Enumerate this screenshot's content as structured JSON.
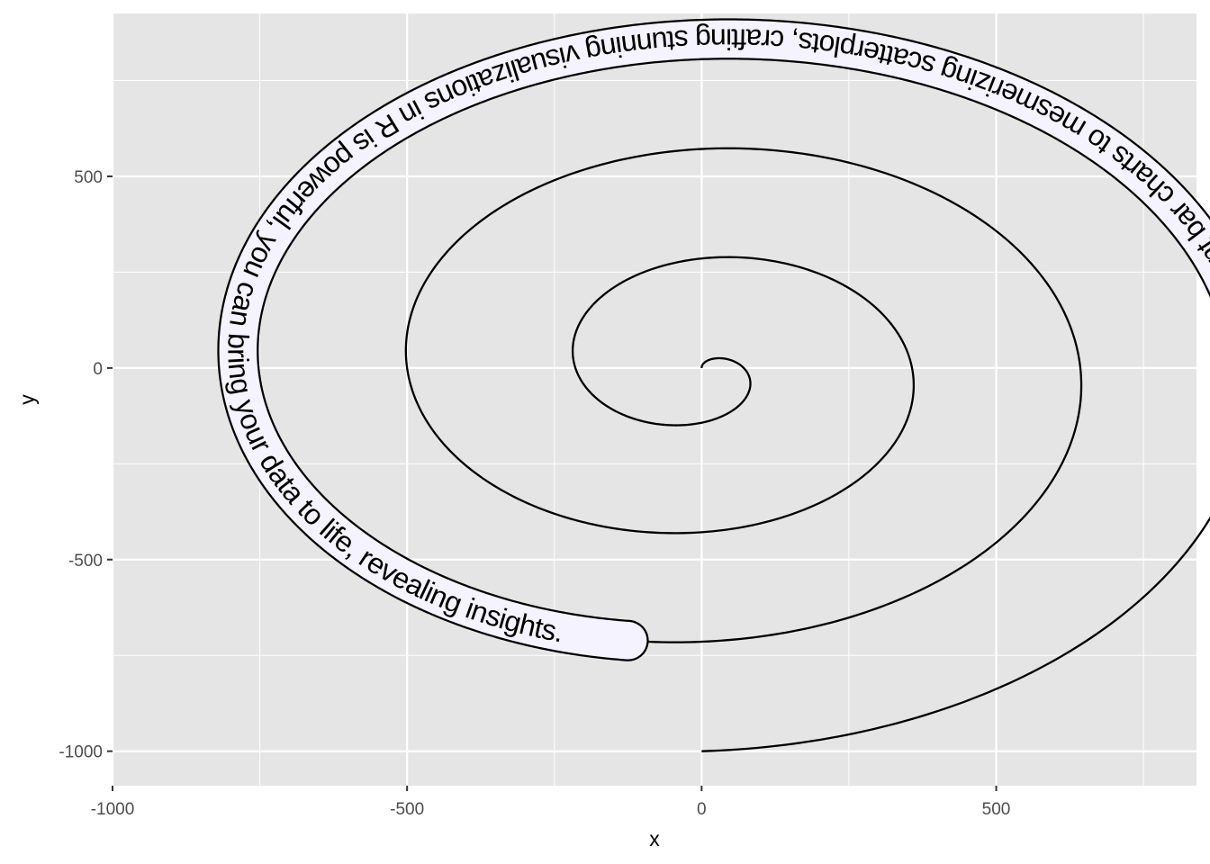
{
  "chart_data": {
    "type": "line",
    "title": "",
    "xlabel": "x",
    "ylabel": "y",
    "xlim": [
      -1000,
      840
    ],
    "ylim": [
      -1090,
      925
    ],
    "x_ticks": [
      -1000,
      -500,
      0,
      500
    ],
    "y_ticks": [
      -1000,
      -500,
      0,
      500
    ],
    "x_tick_labels": [
      "-1000",
      "-500",
      "0",
      "500"
    ],
    "y_tick_labels": [
      "-1000",
      "-500",
      "0",
      "500"
    ],
    "grid": true,
    "legend": "none",
    "series": [
      {
        "description_of_shape": "Archimedean spiral starting at (0,0) and ending at (0,-1000)",
        "start": [
          0,
          0
        ],
        "end": [
          0,
          -1000
        ],
        "turns": 3.5
      }
    ],
    "annotation": {
      "text": "From elegant bar charts to mesmerizing scatterplots, crafting stunning visualizations in R is powerful, you can bring your data to life, revealing insights.",
      "label_fill": "#f5f3ff"
    },
    "colors": {
      "panel_background": "#e5e5e5",
      "grid_major": "#ffffff",
      "line": "#000000",
      "label_fill": "#f5f3ff"
    }
  }
}
